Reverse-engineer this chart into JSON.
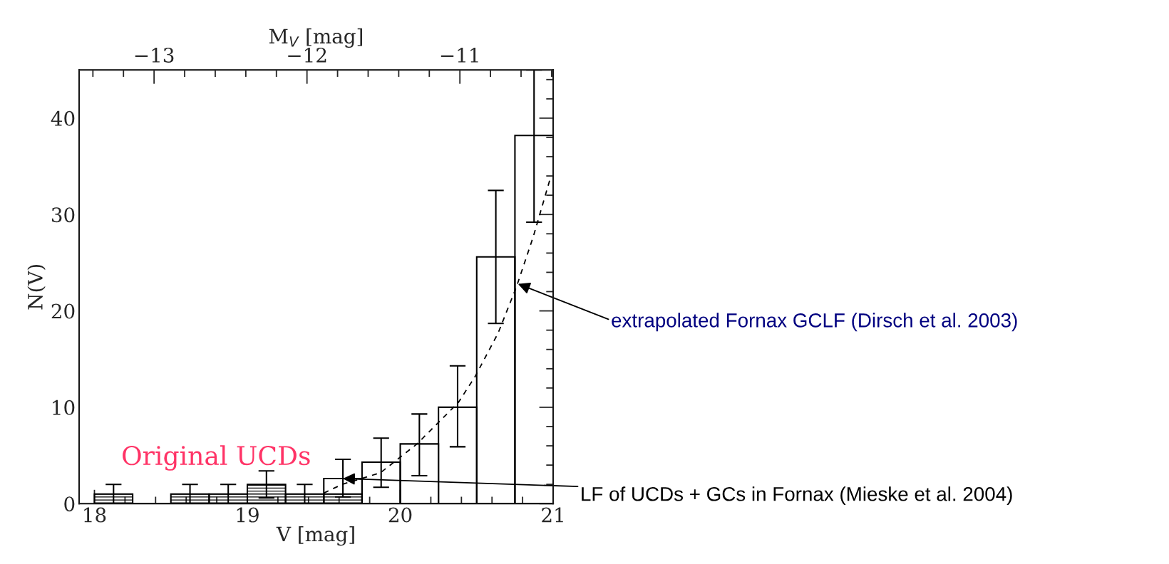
{
  "chart_data": {
    "type": "histogram",
    "xlabel": "V [mag]",
    "ylabel": "N(V)",
    "x2label": "M$_{V}$ [mag]",
    "xlim": [
      17.9,
      21
    ],
    "xticks": [
      18,
      19,
      20,
      21
    ],
    "ylim": [
      0,
      45
    ],
    "yticks": [
      0,
      10,
      20,
      30,
      40
    ],
    "x2lim": [
      -13.49,
      -10.39
    ],
    "x2ticks": [
      {
        "value": -13,
        "label": "−13"
      },
      {
        "value": -12,
        "label": "−12"
      },
      {
        "value": -11,
        "label": "−11"
      }
    ],
    "series": [
      {
        "color": "#000000",
        "bins": [
          19.5,
          19.75,
          20.0,
          20.25,
          20.5,
          20.75,
          21.0
        ],
        "values": [
          2.6,
          4.3,
          6.2,
          10.0,
          25.6,
          38.2
        ],
        "errors": [
          [
            0.7,
            4.6
          ],
          [
            1.7,
            6.8
          ],
          [
            2.9,
            9.3
          ],
          [
            5.9,
            14.3
          ],
          [
            18.7,
            32.5
          ],
          [
            29.2,
            45
          ]
        ]
      },
      {
        "color": "#000000",
        "bins": [
          18.0,
          18.25,
          18.5,
          18.75,
          19.0,
          19.25,
          19.5,
          19.75
        ],
        "values": [
          1,
          0,
          1,
          1,
          2,
          1,
          1
        ],
        "errors": [
          1,
          null,
          1,
          1,
          1.4,
          1,
          null
        ]
      },
      {
        "type": "line",
        "color": "#000000",
        "line_style": "dashed",
        "x": [
          19.5,
          19.62,
          19.87,
          20.11,
          20.38,
          20.49,
          20.64,
          20.76,
          20.87,
          20.98
        ],
        "values": [
          1.1,
          2.0,
          3.2,
          6.2,
          10.5,
          13.2,
          17.7,
          22.5,
          27.7,
          33.7
        ]
      }
    ],
    "annotations": [
      "Original UCDs",
      {
        "text": "extrapolated Fornax GCLF (Dirsch et al. 2003)",
        "x": 20.77,
        "y": 22.8
      },
      {
        "text": "LF of UCDs + GCs in Fornax (Mieske et al. 2004)",
        "x": 19.625,
        "y": 2.6
      }
    ]
  }
}
